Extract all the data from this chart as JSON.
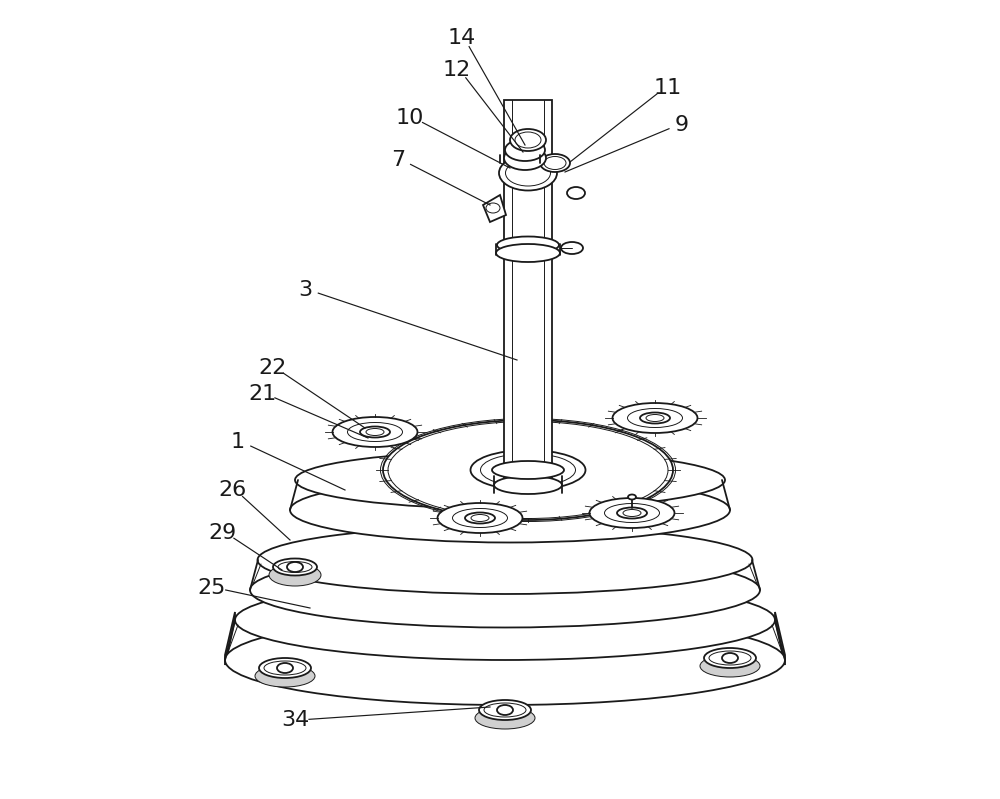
{
  "background_color": "#ffffff",
  "line_color": "#1a1a1a",
  "label_color": "#1a1a1a",
  "figsize": [
    10.0,
    7.99
  ],
  "dpi": 100,
  "lw_main": 1.3,
  "lw_thin": 0.7,
  "lw_thick": 1.8,
  "label_fontsize": 16
}
